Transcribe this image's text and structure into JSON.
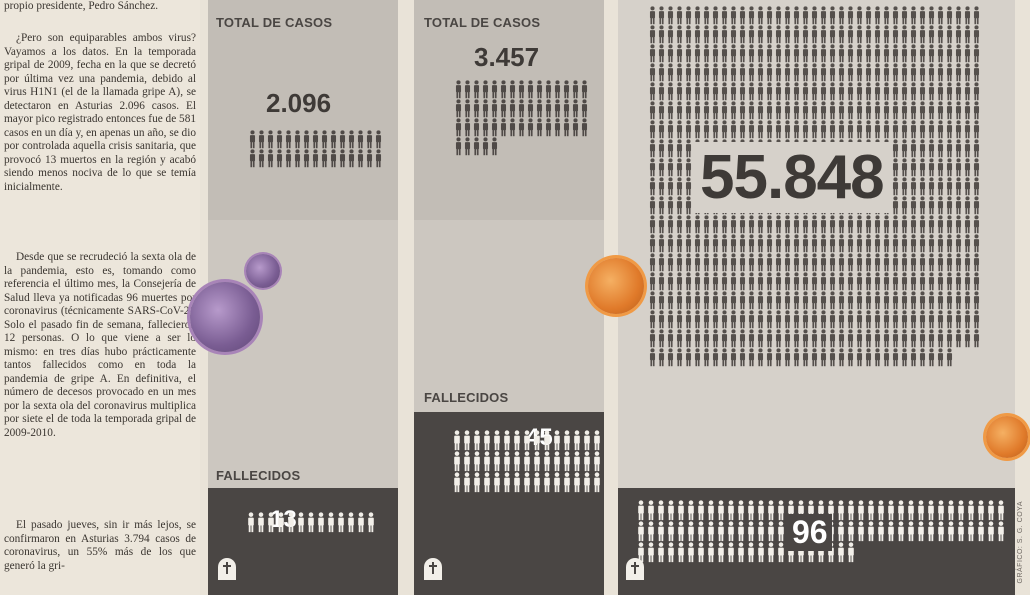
{
  "article": {
    "paragraphs": [
      "propio presidente, Pedro Sánchez.",
      "¿Pero son equiparables ambos virus? Vayamos a los datos. En la temporada gripal de 2009, fecha en la que se decretó por última vez una pandemia, debido al virus H1N1 (el de la llamada gripe A), se detectaron en Asturias 2.096 casos. El mayor pico registrado entonces fue de 581 casos en un día y, en apenas un año, se dio por controlada aquella crisis sanitaria, que provocó 13 muertos en la región y acabó siendo menos nociva de lo que se temía inicialmente.",
      "Desde que se recrudeció la sexta ola de la pandemia, esto es, tomando como referencia el último mes, la Consejería de Salud lleva ya notificadas 96 muertes por coronavirus (técnicamente SARS-CoV-2). Solo el pasado fin de semana, fallecieron 12 personas. O lo que viene a ser lo mismo: en tres días hubo prácticamente tantos fallecidos como en toda la pandemia de gripe A. En definitiva, el número de decesos provocado en un mes por la sexta ola del coronavirus multiplica por siete el de toda la temporada gripal de 2009-2010.",
      "El pasado jueves, sin ir más lejos, se confirmaron en Asturias 3.794 casos de coronavirus, un 55% más de los que generó la gri-"
    ]
  },
  "panels": [
    {
      "cases_label": "TOTAL DE CASOS",
      "cases": "2.096",
      "deaths_label": "FALLECIDOS",
      "deaths": "13",
      "deaths_icons": 13
    },
    {
      "cases_label": "TOTAL DE CASOS",
      "cases": "3.457",
      "deaths_label": "FALLECIDOS",
      "deaths": "45",
      "deaths_icons": 45
    },
    {
      "cases": "55.848",
      "deaths": "96",
      "deaths_icons": 96
    }
  ],
  "credit": "GRÁFICO: S. G. COYA",
  "colors": {
    "panel_bg": "#ccc7c0",
    "dark_box": "#4a4644",
    "icon": "#4f4a47",
    "virus_purple": "#8b6aa6",
    "virus_orange": "#e07a2a"
  }
}
